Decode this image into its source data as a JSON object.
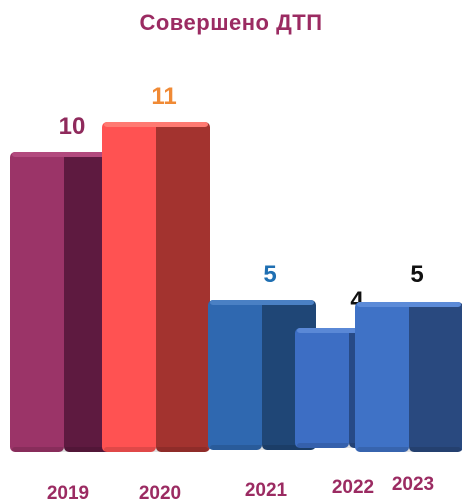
{
  "chart_data": {
    "type": "bar",
    "title": "Совершено ДТП",
    "categories": [
      "2019",
      "2020",
      "2021",
      "2022",
      "2023"
    ],
    "values": [
      10,
      11,
      5,
      4,
      5
    ],
    "ylim": [
      0,
      11
    ],
    "grid": false,
    "legend": "none",
    "colors": {
      "title": "#9b2b62",
      "category_labels": "#9b2b62",
      "bars": [
        {
          "front": "#9b3468",
          "side": "#5e1a40",
          "top": "#b24a7e"
        },
        {
          "front": "#ff5252",
          "side": "#a3332f",
          "top": "#ff7a72"
        },
        {
          "front": "#2f68b0",
          "side": "#1f4676",
          "top": "#4a80c4"
        },
        {
          "front": "#3d6ec4",
          "side": "#274a86",
          "top": "#5a88d6"
        },
        {
          "front": "#3f72c6",
          "side": "#29497f",
          "top": "#5c8bd8"
        }
      ],
      "value_labels": [
        "#8f2a5c",
        "#f08a35",
        "#1f6fb2",
        "#111111",
        "#111111"
      ]
    }
  }
}
